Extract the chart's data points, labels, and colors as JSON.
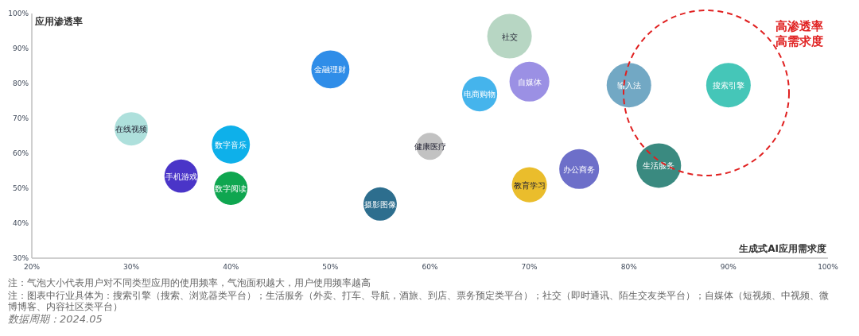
{
  "chart_data": {
    "type": "bubble",
    "xlabel": "生成式AI应用需求度",
    "ylabel": "应用渗透率",
    "series": [
      {
        "name": "在线视频",
        "color": "#aee0dc",
        "x": [
          30
        ],
        "values": [
          67
        ],
        "sizes": [
          0.56
        ]
      },
      {
        "name": "手机游戏",
        "color": "#4a35c8",
        "x": [
          35
        ],
        "values": [
          53.5
        ],
        "sizes": [
          0.56
        ]
      },
      {
        "name": "数字音乐",
        "color": "#0eb0ea",
        "x": [
          40
        ],
        "values": [
          62.5
        ],
        "sizes": [
          0.73
        ]
      },
      {
        "name": "数字阅读",
        "color": "#0fa650",
        "x": [
          40
        ],
        "values": [
          50
        ],
        "sizes": [
          0.56
        ]
      },
      {
        "name": "金融理财",
        "color": "#2f8de8",
        "x": [
          50
        ],
        "values": [
          84
        ],
        "sizes": [
          0.73
        ]
      },
      {
        "name": "摄影图像",
        "color": "#2d6e8e",
        "x": [
          55
        ],
        "values": [
          45.5
        ],
        "sizes": [
          0.56
        ]
      },
      {
        "name": "健康医疗",
        "color": "#c2c2c2",
        "x": [
          60
        ],
        "values": [
          62
        ],
        "sizes": [
          0.37
        ]
      },
      {
        "name": "电商购物",
        "color": "#45b4ec",
        "x": [
          65
        ],
        "values": [
          77
        ],
        "sizes": [
          0.62
        ]
      },
      {
        "name": "社交",
        "color": "#b7d6c3",
        "x": [
          68
        ],
        "values": [
          93.5
        ],
        "sizes": [
          1
        ]
      },
      {
        "name": "自媒体",
        "color": "#9b90e4",
        "x": [
          70
        ],
        "values": [
          80.5
        ],
        "sizes": [
          0.8
        ]
      },
      {
        "name": "教育学习",
        "color": "#eabd2c",
        "x": [
          70
        ],
        "values": [
          51
        ],
        "sizes": [
          0.62
        ]
      },
      {
        "name": "办公商务",
        "color": "#6d6fc9",
        "x": [
          75
        ],
        "values": [
          55.5
        ],
        "sizes": [
          0.8
        ]
      },
      {
        "name": "输入法",
        "color": "#72a8c4",
        "x": [
          80
        ],
        "values": [
          79.5
        ],
        "sizes": [
          1
        ]
      },
      {
        "name": "生活服务",
        "color": "#3a8a80",
        "x": [
          83
        ],
        "values": [
          56.5
        ],
        "sizes": [
          1
        ]
      },
      {
        "name": "搜索引擎",
        "color": "#45c6b8",
        "x": [
          90
        ],
        "values": [
          79.5
        ],
        "sizes": [
          1
        ]
      }
    ],
    "xlim": [
      20,
      100
    ],
    "xticks": [
      {
        "value": 20,
        "label": "20%"
      },
      {
        "value": 30,
        "label": "30%"
      },
      {
        "value": 40,
        "label": "40%"
      },
      {
        "value": 50,
        "label": "50%"
      },
      {
        "value": 60,
        "label": "60%"
      },
      {
        "value": 70,
        "label": "70%"
      },
      {
        "value": 80,
        "label": "80%"
      },
      {
        "value": 90,
        "label": "90%"
      },
      {
        "value": 100,
        "label": "100%"
      }
    ],
    "ylim": [
      30,
      100
    ],
    "yticks": [
      {
        "value": 30,
        "label": "30%"
      },
      {
        "value": 40,
        "label": "40%"
      },
      {
        "value": 50,
        "label": "50%"
      },
      {
        "value": 60,
        "label": "60%"
      },
      {
        "value": 70,
        "label": "70%"
      },
      {
        "value": 80,
        "label": "80%"
      },
      {
        "value": 90,
        "label": "90%"
      },
      {
        "value": 100,
        "label": "100%"
      }
    ],
    "annotations": [
      "高渗透率",
      "高需求度",
      "注：气泡大小代表用户对不同类型应用的使用频率，气泡面积越大，用户使用频率越高",
      "注：图表中行业具体为：搜索引擎（搜索、浏览器类平台）；生活服务（外卖、打车、导航，酒旅、到店、票务预定类平台）；社交（即时通讯、陌生交友类平台）；自媒体（短视频、中视频、微博博客、内容社区类平台）",
      "数据周期：2024.05"
    ]
  }
}
